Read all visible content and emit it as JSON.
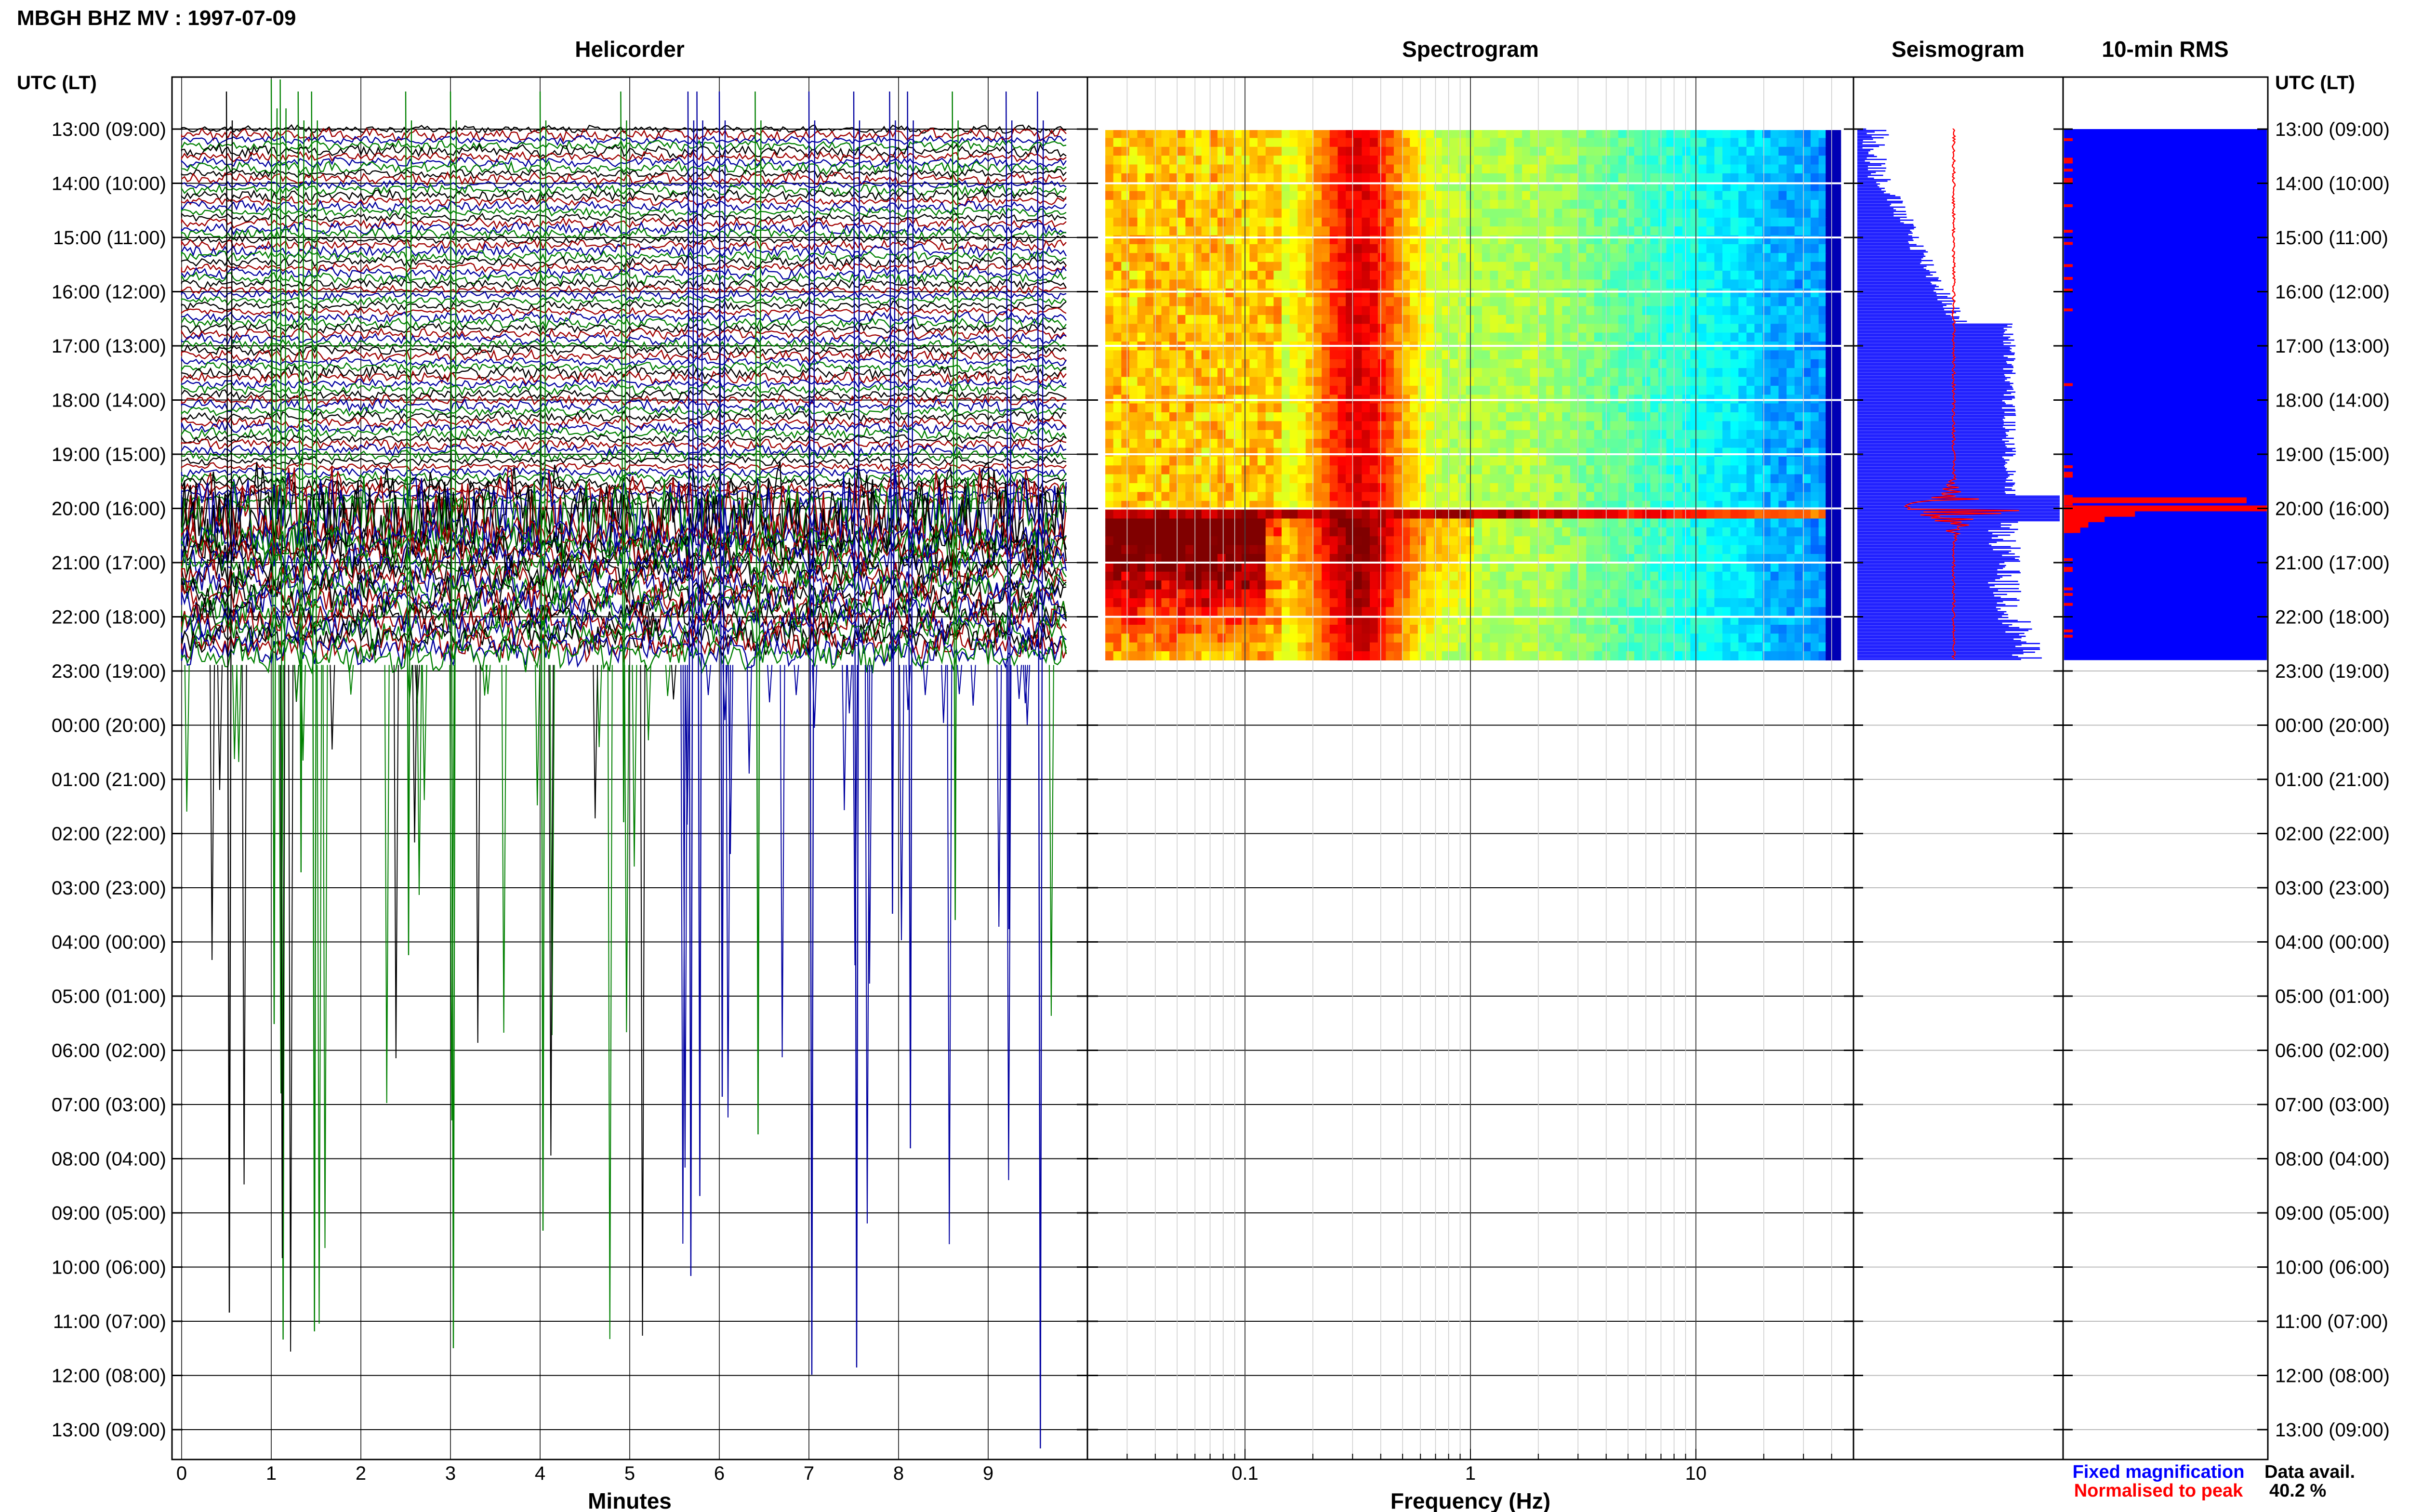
{
  "page_title": "MBGH BHZ MV : 1997-07-09",
  "panels": {
    "helicorder": "Helicorder",
    "spectrogram": "Spectrogram",
    "seismogram": "Seismogram",
    "rms": "10-min RMS"
  },
  "axis_labels": {
    "utc_left": "UTC (LT)",
    "utc_right": "UTC (LT)",
    "minutes": "Minutes",
    "frequency": "Frequency (Hz)"
  },
  "legend": {
    "fixed": "Fixed magnification",
    "normalised": "Normalised to peak",
    "fixed_color": "#0000ff",
    "normalised_color": "#ff0000"
  },
  "availability": {
    "label": "Data avail.",
    "value": "40.2 %"
  },
  "chart_data": {
    "type": "heatmap",
    "row_labels": [
      "13:00 (09:00)",
      "14:00 (10:00)",
      "15:00 (11:00)",
      "16:00 (12:00)",
      "17:00 (13:00)",
      "18:00 (14:00)",
      "19:00 (15:00)",
      "20:00 (16:00)",
      "21:00 (17:00)",
      "22:00 (18:00)",
      "23:00 (19:00)",
      "00:00 (20:00)",
      "01:00 (21:00)",
      "02:00 (22:00)",
      "03:00 (23:00)",
      "04:00 (00:00)",
      "05:00 (01:00)",
      "06:00 (02:00)",
      "07:00 (03:00)",
      "08:00 (04:00)",
      "09:00 (05:00)",
      "10:00 (06:00)",
      "11:00 (07:00)",
      "12:00 (08:00)",
      "13:00 (09:00)"
    ],
    "minutes_ticks": [
      "0",
      "1",
      "2",
      "3",
      "4",
      "5",
      "6",
      "7",
      "8",
      "9"
    ],
    "minutes_range": [
      0,
      10
    ],
    "freq_ticks": [
      {
        "label": "0.1",
        "value": 0.1
      },
      {
        "label": "1",
        "value": 1
      },
      {
        "label": "10",
        "value": 10
      }
    ],
    "freq_range": [
      0.02,
      50
    ],
    "freq_scale": "log",
    "data_end_hour": 9.8,
    "event_hour": 7.0,
    "helicorder_colors": [
      "#000000",
      "#a00000",
      "#0000a0",
      "#008000"
    ],
    "spectrogram_colormap": "jet",
    "rms": {
      "background_color": "#0000ff",
      "event_color": "#ff0000",
      "event_bars": [
        {
          "hour": 6.85,
          "length": 0.9
        },
        {
          "hour": 7.0,
          "length": 1.0
        },
        {
          "hour": 7.1,
          "length": 0.35
        },
        {
          "hour": 7.2,
          "length": 0.2
        },
        {
          "hour": 7.3,
          "length": 0.12
        },
        {
          "hour": 7.4,
          "length": 0.08
        }
      ]
    }
  }
}
